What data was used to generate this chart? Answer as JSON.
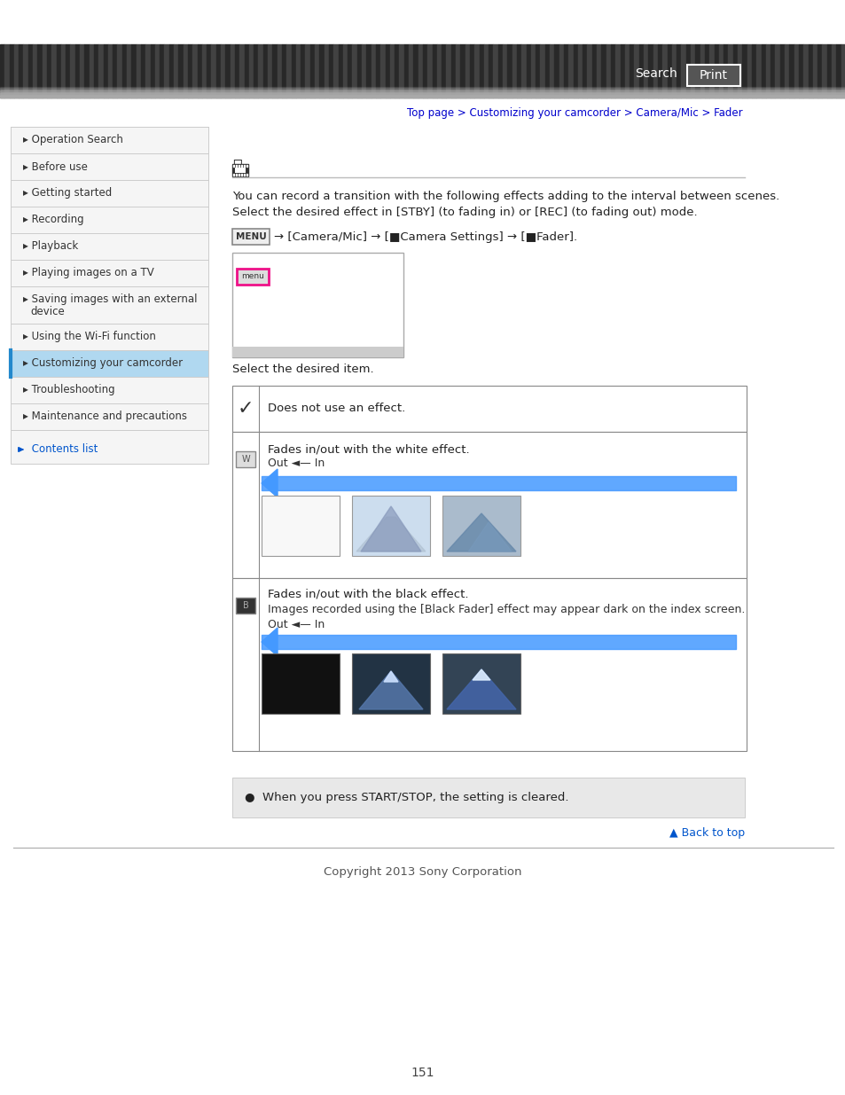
{
  "bg_color": "#ffffff",
  "search_text": "Search",
  "print_text": "Print",
  "breadcrumb": "Top page > Customizing your camcorder > Camera/Mic > Fader",
  "breadcrumb_color": "#0000cc",
  "sidebar_items": [
    "Operation Search",
    "Before use",
    "Getting started",
    "Recording",
    "Playback",
    "Playing images on a TV",
    "Saving images with an external\ndevice",
    "Using the Wi-Fi function",
    "Customizing your camcorder",
    "Troubleshooting",
    "Maintenance and precautions"
  ],
  "sidebar_active_idx": 8,
  "sidebar_active_color": "#b0d8f0",
  "sidebar_text_color": "#333333",
  "contents_list_color": "#0055cc",
  "body_text1": "You can record a transition with the following effects adding to the interval between scenes.",
  "body_text2": "Select the desired effect in [STBY] (to fading in) or [REC] (to fading out) mode.",
  "select_text": "Select the desired item.",
  "row0_text": "Does not use an effect.",
  "row1_text1": "Fades in/out with the white effect.",
  "row1_text2": "Out ◄— In",
  "row2_text1": "Fades in/out with the black effect.",
  "row2_text2": "Images recorded using the [Black Fader] effect may appear dark on the index screen.",
  "row2_text3": "Out ◄— In",
  "note_text": "When you press START/STOP, the setting is cleared.",
  "note_bg": "#e8e8e8",
  "back_to_top": "▲ Back to top",
  "back_to_top_color": "#0055cc",
  "footer_text": "Copyright 2013 Sony Corporation",
  "page_number": "151",
  "arrow_color": "#4499ff",
  "table_border": "#888888"
}
